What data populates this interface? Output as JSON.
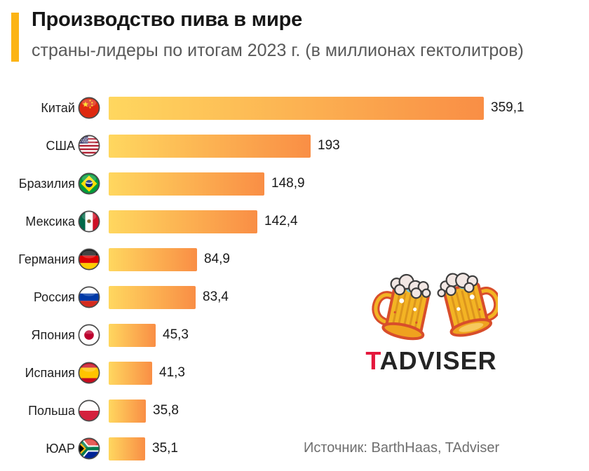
{
  "header": {
    "title": "Производство пива в мире",
    "subtitle": "страны-лидеры по итогам 2023 г. (в миллионах гектолитров)",
    "accent_color": "#FCB415"
  },
  "chart_data": {
    "type": "bar",
    "orientation": "horizontal",
    "title": "Производство пива в мире",
    "subtitle": "страны-лидеры по итогам 2023 г. (в миллионах гектолитров)",
    "unit": "миллионы гектолитров",
    "year": "2023",
    "categories": [
      "Китай",
      "США",
      "Бразилия",
      "Мексика",
      "Германия",
      "Россия",
      "Япония",
      "Испания",
      "Польша",
      "ЮАР"
    ],
    "values": [
      359.1,
      193,
      148.9,
      142.4,
      84.9,
      83.4,
      45.3,
      41.3,
      35.8,
      35.1
    ],
    "value_labels": [
      "359,1",
      "193",
      "148,9",
      "142,4",
      "84,9",
      "83,4",
      "45,3",
      "41,3",
      "35,8",
      "35,1"
    ],
    "flag_icons": [
      "china-flag-icon",
      "usa-flag-icon",
      "brazil-flag-icon",
      "mexico-flag-icon",
      "germany-flag-icon",
      "russia-flag-icon",
      "japan-flag-icon",
      "spain-flag-icon",
      "poland-flag-icon",
      "south-africa-flag-icon"
    ],
    "xlim": [
      0,
      360
    ],
    "grid": false,
    "legend": false,
    "bar_gradient": [
      "#FFD75F",
      "#F98E45"
    ]
  },
  "logo": {
    "brand_first_letter": "T",
    "brand_rest": "ADVISER",
    "t_color": "#E4183C",
    "icon": "beer-mugs-icon"
  },
  "source": {
    "text": "Источник: BarthHaas, TAdviser"
  }
}
